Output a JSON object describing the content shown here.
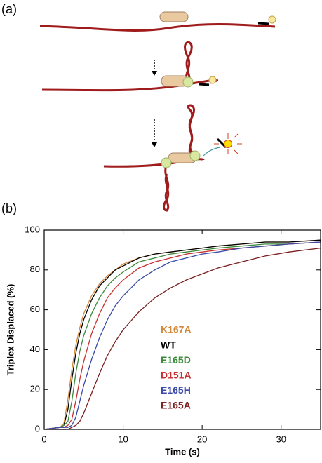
{
  "panel_labels": [
    "(a)",
    "(b)"
  ],
  "chart_data": {
    "type": "line",
    "xlabel": "Time (s)",
    "ylabel": "Triplex Displaced (%)",
    "x": [
      0,
      2,
      2.5,
      3,
      3.5,
      4,
      4.5,
      5,
      6,
      7,
      8,
      9,
      10,
      12,
      14,
      16,
      18,
      20,
      22,
      25,
      28,
      31,
      35
    ],
    "xlim": [
      0,
      35
    ],
    "xticks": [
      0,
      10,
      20,
      30
    ],
    "ylim": [
      0,
      100
    ],
    "yticks": [
      0,
      20,
      40,
      60,
      80,
      100
    ],
    "series": [
      {
        "name": "K167A",
        "color": "#d4893a",
        "values": [
          0,
          1,
          3,
          15,
          30,
          42,
          51,
          58,
          67,
          73,
          77,
          80,
          83,
          86,
          88,
          89,
          90,
          91,
          92,
          93,
          94,
          94,
          95
        ]
      },
      {
        "name": "WT",
        "color": "#000000",
        "values": [
          0,
          1,
          2,
          10,
          25,
          38,
          48,
          55,
          65,
          72,
          76,
          80,
          82,
          86,
          88,
          89,
          90,
          91,
          92,
          93,
          94,
          94,
          95
        ]
      },
      {
        "name": "E165D",
        "color": "#3a8a3a",
        "values": [
          0,
          1,
          2,
          4,
          14,
          28,
          39,
          47,
          58,
          66,
          72,
          76,
          79,
          84,
          86,
          88,
          89,
          90,
          91,
          92,
          93,
          93,
          94
        ]
      },
      {
        "name": "D151A",
        "color": "#c83030",
        "values": [
          0,
          1,
          1,
          2,
          5,
          14,
          25,
          34,
          48,
          58,
          66,
          71,
          75,
          81,
          84,
          86,
          88,
          89,
          90,
          91,
          92,
          93,
          94
        ]
      },
      {
        "name": "E165H",
        "color": "#3a4aa8",
        "values": [
          0,
          1,
          1,
          1,
          2,
          6,
          14,
          22,
          35,
          46,
          55,
          62,
          67,
          75,
          80,
          84,
          86,
          88,
          89,
          91,
          92,
          93,
          94
        ]
      },
      {
        "name": "E165A",
        "color": "#7a2020",
        "values": [
          0,
          0,
          0,
          0,
          1,
          2,
          4,
          8,
          18,
          28,
          37,
          44,
          50,
          59,
          66,
          71,
          75,
          78,
          81,
          84,
          87,
          89,
          91
        ]
      }
    ]
  }
}
